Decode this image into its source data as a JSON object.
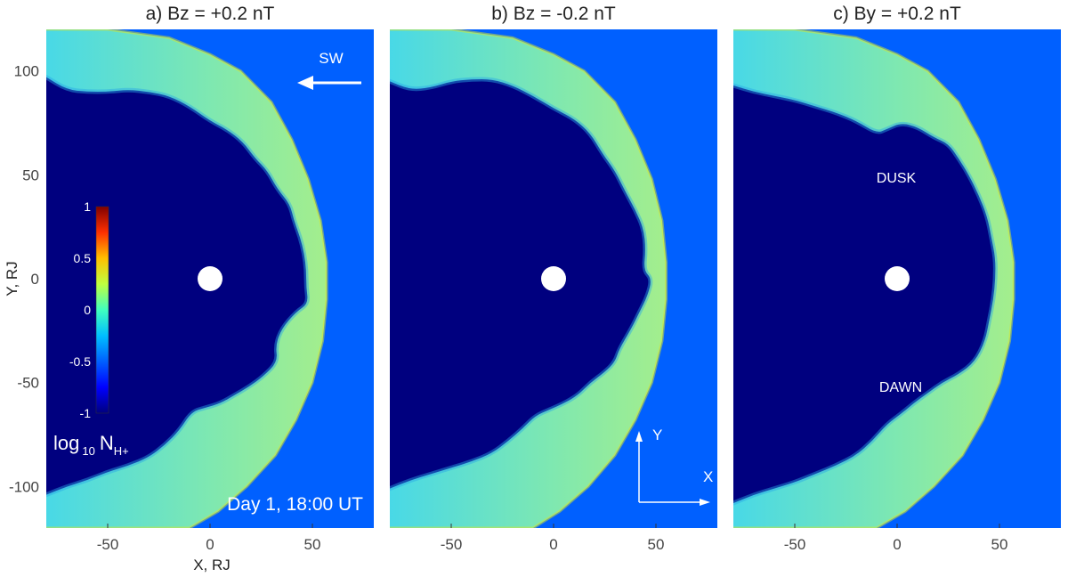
{
  "figure": {
    "ylabel": "Y, RJ",
    "xlabel": "X, RJ",
    "colorbar": {
      "label_main": "log",
      "label_sub": "10",
      "label_var": "N",
      "label_var_sub": "H+",
      "ticks": [
        "1",
        "0.5",
        "0",
        "-0.5",
        "-1"
      ],
      "tick_values": [
        1,
        0.5,
        0,
        -0.5,
        -1
      ],
      "range": [
        -1,
        1
      ]
    },
    "sw_label": "SW",
    "timestamp": "Day 1, 18:00 UT",
    "axes_arrow": {
      "y_label": "Y",
      "x_label": "X"
    },
    "dusk_label": "DUSK",
    "dawn_label": "DAWN"
  },
  "chart_data": [
    {
      "type": "heatmap",
      "title": "a) Bz = +0.2 nT",
      "xlabel": "X, RJ",
      "ylabel": "Y, RJ",
      "xlim": [
        -80,
        80
      ],
      "ylim": [
        -120,
        120
      ],
      "xticks": [
        -50,
        0,
        50
      ],
      "yticks": [
        100,
        50,
        0,
        -50,
        -100
      ],
      "variable": "log10 N_H+",
      "colorscale_range": [
        -1,
        1
      ],
      "planet_center": [
        0,
        0
      ],
      "background_value": -0.5,
      "magnetosphere_value": -1.0,
      "sheath_value": 0.0,
      "inner_boundary": [
        [
          -80,
          97
        ],
        [
          -70,
          91
        ],
        [
          -60,
          90
        ],
        [
          -50,
          90
        ],
        [
          -40,
          91
        ],
        [
          -30,
          90
        ],
        [
          -20,
          88
        ],
        [
          -10,
          83
        ],
        [
          0,
          76
        ],
        [
          8,
          72
        ],
        [
          16,
          66
        ],
        [
          22,
          58
        ],
        [
          28,
          52
        ],
        [
          33,
          43
        ],
        [
          39,
          36
        ],
        [
          41,
          28
        ],
        [
          44,
          20
        ],
        [
          46,
          12
        ],
        [
          47,
          4
        ],
        [
          47,
          -4
        ],
        [
          48,
          -12
        ],
        [
          42,
          -16
        ],
        [
          35,
          -24
        ],
        [
          32,
          -32
        ],
        [
          33,
          -40
        ],
        [
          26,
          -47
        ],
        [
          19,
          -52
        ],
        [
          12,
          -56
        ],
        [
          5,
          -60
        ],
        [
          -2,
          -62
        ],
        [
          -9,
          -64
        ],
        [
          -15,
          -73
        ],
        [
          -22,
          -80
        ],
        [
          -30,
          -86
        ],
        [
          -40,
          -90
        ],
        [
          -50,
          -93
        ],
        [
          -60,
          -97
        ],
        [
          -70,
          -100
        ],
        [
          -80,
          -104
        ]
      ],
      "outer_boundary": [
        [
          -78,
          120
        ],
        [
          -50,
          120
        ],
        [
          -20,
          116
        ],
        [
          0,
          108
        ],
        [
          15,
          100
        ],
        [
          30,
          85
        ],
        [
          40,
          67
        ],
        [
          48,
          48
        ],
        [
          54,
          28
        ],
        [
          57,
          8
        ],
        [
          57,
          -10
        ],
        [
          55,
          -30
        ],
        [
          50,
          -50
        ],
        [
          42,
          -68
        ],
        [
          32,
          -85
        ],
        [
          18,
          -100
        ],
        [
          4,
          -112
        ],
        [
          -10,
          -120
        ]
      ]
    },
    {
      "type": "heatmap",
      "title": "b) Bz = -0.2 nT",
      "xlabel": "X, RJ",
      "ylabel": "Y, RJ",
      "xlim": [
        -80,
        80
      ],
      "ylim": [
        -120,
        120
      ],
      "xticks": [
        -50,
        0,
        50
      ],
      "yticks": [
        100,
        50,
        0,
        -50,
        -100
      ],
      "variable": "log10 N_H+",
      "colorscale_range": [
        -1,
        1
      ],
      "planet_center": [
        0,
        0
      ],
      "background_value": -0.5,
      "magnetosphere_value": -1.0,
      "sheath_value": 0.0,
      "inner_boundary": [
        [
          -80,
          95
        ],
        [
          -70,
          91
        ],
        [
          -60,
          92
        ],
        [
          -50,
          95
        ],
        [
          -40,
          96
        ],
        [
          -30,
          96
        ],
        [
          -20,
          93
        ],
        [
          -10,
          88
        ],
        [
          0,
          82
        ],
        [
          10,
          77
        ],
        [
          18,
          70
        ],
        [
          24,
          60
        ],
        [
          30,
          52
        ],
        [
          35,
          42
        ],
        [
          40,
          33
        ],
        [
          44,
          24
        ],
        [
          45,
          14
        ],
        [
          44,
          4
        ],
        [
          48,
          0
        ],
        [
          46,
          -8
        ],
        [
          42,
          -16
        ],
        [
          38,
          -24
        ],
        [
          32,
          -34
        ],
        [
          30,
          -40
        ],
        [
          25,
          -45
        ],
        [
          18,
          -50
        ],
        [
          12,
          -56
        ],
        [
          5,
          -60
        ],
        [
          -2,
          -63
        ],
        [
          -9,
          -66
        ],
        [
          -15,
          -72
        ],
        [
          -22,
          -78
        ],
        [
          -30,
          -84
        ],
        [
          -40,
          -88
        ],
        [
          -50,
          -91
        ],
        [
          -60,
          -94
        ],
        [
          -70,
          -97
        ],
        [
          -80,
          -101
        ]
      ],
      "outer_boundary": [
        [
          -78,
          120
        ],
        [
          -50,
          120
        ],
        [
          -20,
          116
        ],
        [
          0,
          108
        ],
        [
          15,
          100
        ],
        [
          30,
          85
        ],
        [
          40,
          67
        ],
        [
          48,
          48
        ],
        [
          53,
          28
        ],
        [
          55,
          8
        ],
        [
          55,
          -10
        ],
        [
          53,
          -30
        ],
        [
          48,
          -50
        ],
        [
          40,
          -68
        ],
        [
          30,
          -85
        ],
        [
          17,
          -100
        ],
        [
          3,
          -112
        ],
        [
          -10,
          -120
        ]
      ]
    },
    {
      "type": "heatmap",
      "title": "c) By = +0.2 nT",
      "xlabel": "X, RJ",
      "ylabel": "Y, RJ",
      "xlim": [
        -80,
        80
      ],
      "ylim": [
        -120,
        120
      ],
      "xticks": [
        -50,
        0,
        50
      ],
      "yticks": [
        100,
        50,
        0,
        -50,
        -100
      ],
      "variable": "log10 N_H+",
      "colorscale_range": [
        -1,
        1
      ],
      "planet_center": [
        0,
        0
      ],
      "background_value": -0.5,
      "magnetosphere_value": -1.0,
      "sheath_value": 0.0,
      "inner_boundary": [
        [
          -80,
          93
        ],
        [
          -70,
          90
        ],
        [
          -60,
          88
        ],
        [
          -50,
          86
        ],
        [
          -40,
          83
        ],
        [
          -30,
          80
        ],
        [
          -20,
          76
        ],
        [
          -10,
          70
        ],
        [
          -5,
          72
        ],
        [
          2,
          75
        ],
        [
          10,
          73
        ],
        [
          18,
          68
        ],
        [
          25,
          65
        ],
        [
          30,
          58
        ],
        [
          35,
          50
        ],
        [
          40,
          40
        ],
        [
          44,
          30
        ],
        [
          46,
          20
        ],
        [
          48,
          10
        ],
        [
          48,
          0
        ],
        [
          47,
          -10
        ],
        [
          45,
          -20
        ],
        [
          43,
          -30
        ],
        [
          38,
          -40
        ],
        [
          30,
          -46
        ],
        [
          22,
          -50
        ],
        [
          15,
          -55
        ],
        [
          8,
          -60
        ],
        [
          2,
          -65
        ],
        [
          -5,
          -70
        ],
        [
          -12,
          -78
        ],
        [
          -20,
          -85
        ],
        [
          -30,
          -90
        ],
        [
          -40,
          -94
        ],
        [
          -50,
          -98
        ],
        [
          -60,
          -101
        ],
        [
          -70,
          -104
        ],
        [
          -80,
          -108
        ]
      ],
      "outer_boundary": [
        [
          -78,
          120
        ],
        [
          -50,
          120
        ],
        [
          -20,
          116
        ],
        [
          0,
          108
        ],
        [
          15,
          100
        ],
        [
          30,
          85
        ],
        [
          40,
          67
        ],
        [
          48,
          48
        ],
        [
          54,
          28
        ],
        [
          57,
          8
        ],
        [
          57,
          -10
        ],
        [
          55,
          -30
        ],
        [
          50,
          -50
        ],
        [
          42,
          -68
        ],
        [
          32,
          -85
        ],
        [
          18,
          -100
        ],
        [
          4,
          -112
        ],
        [
          -10,
          -120
        ]
      ]
    }
  ]
}
